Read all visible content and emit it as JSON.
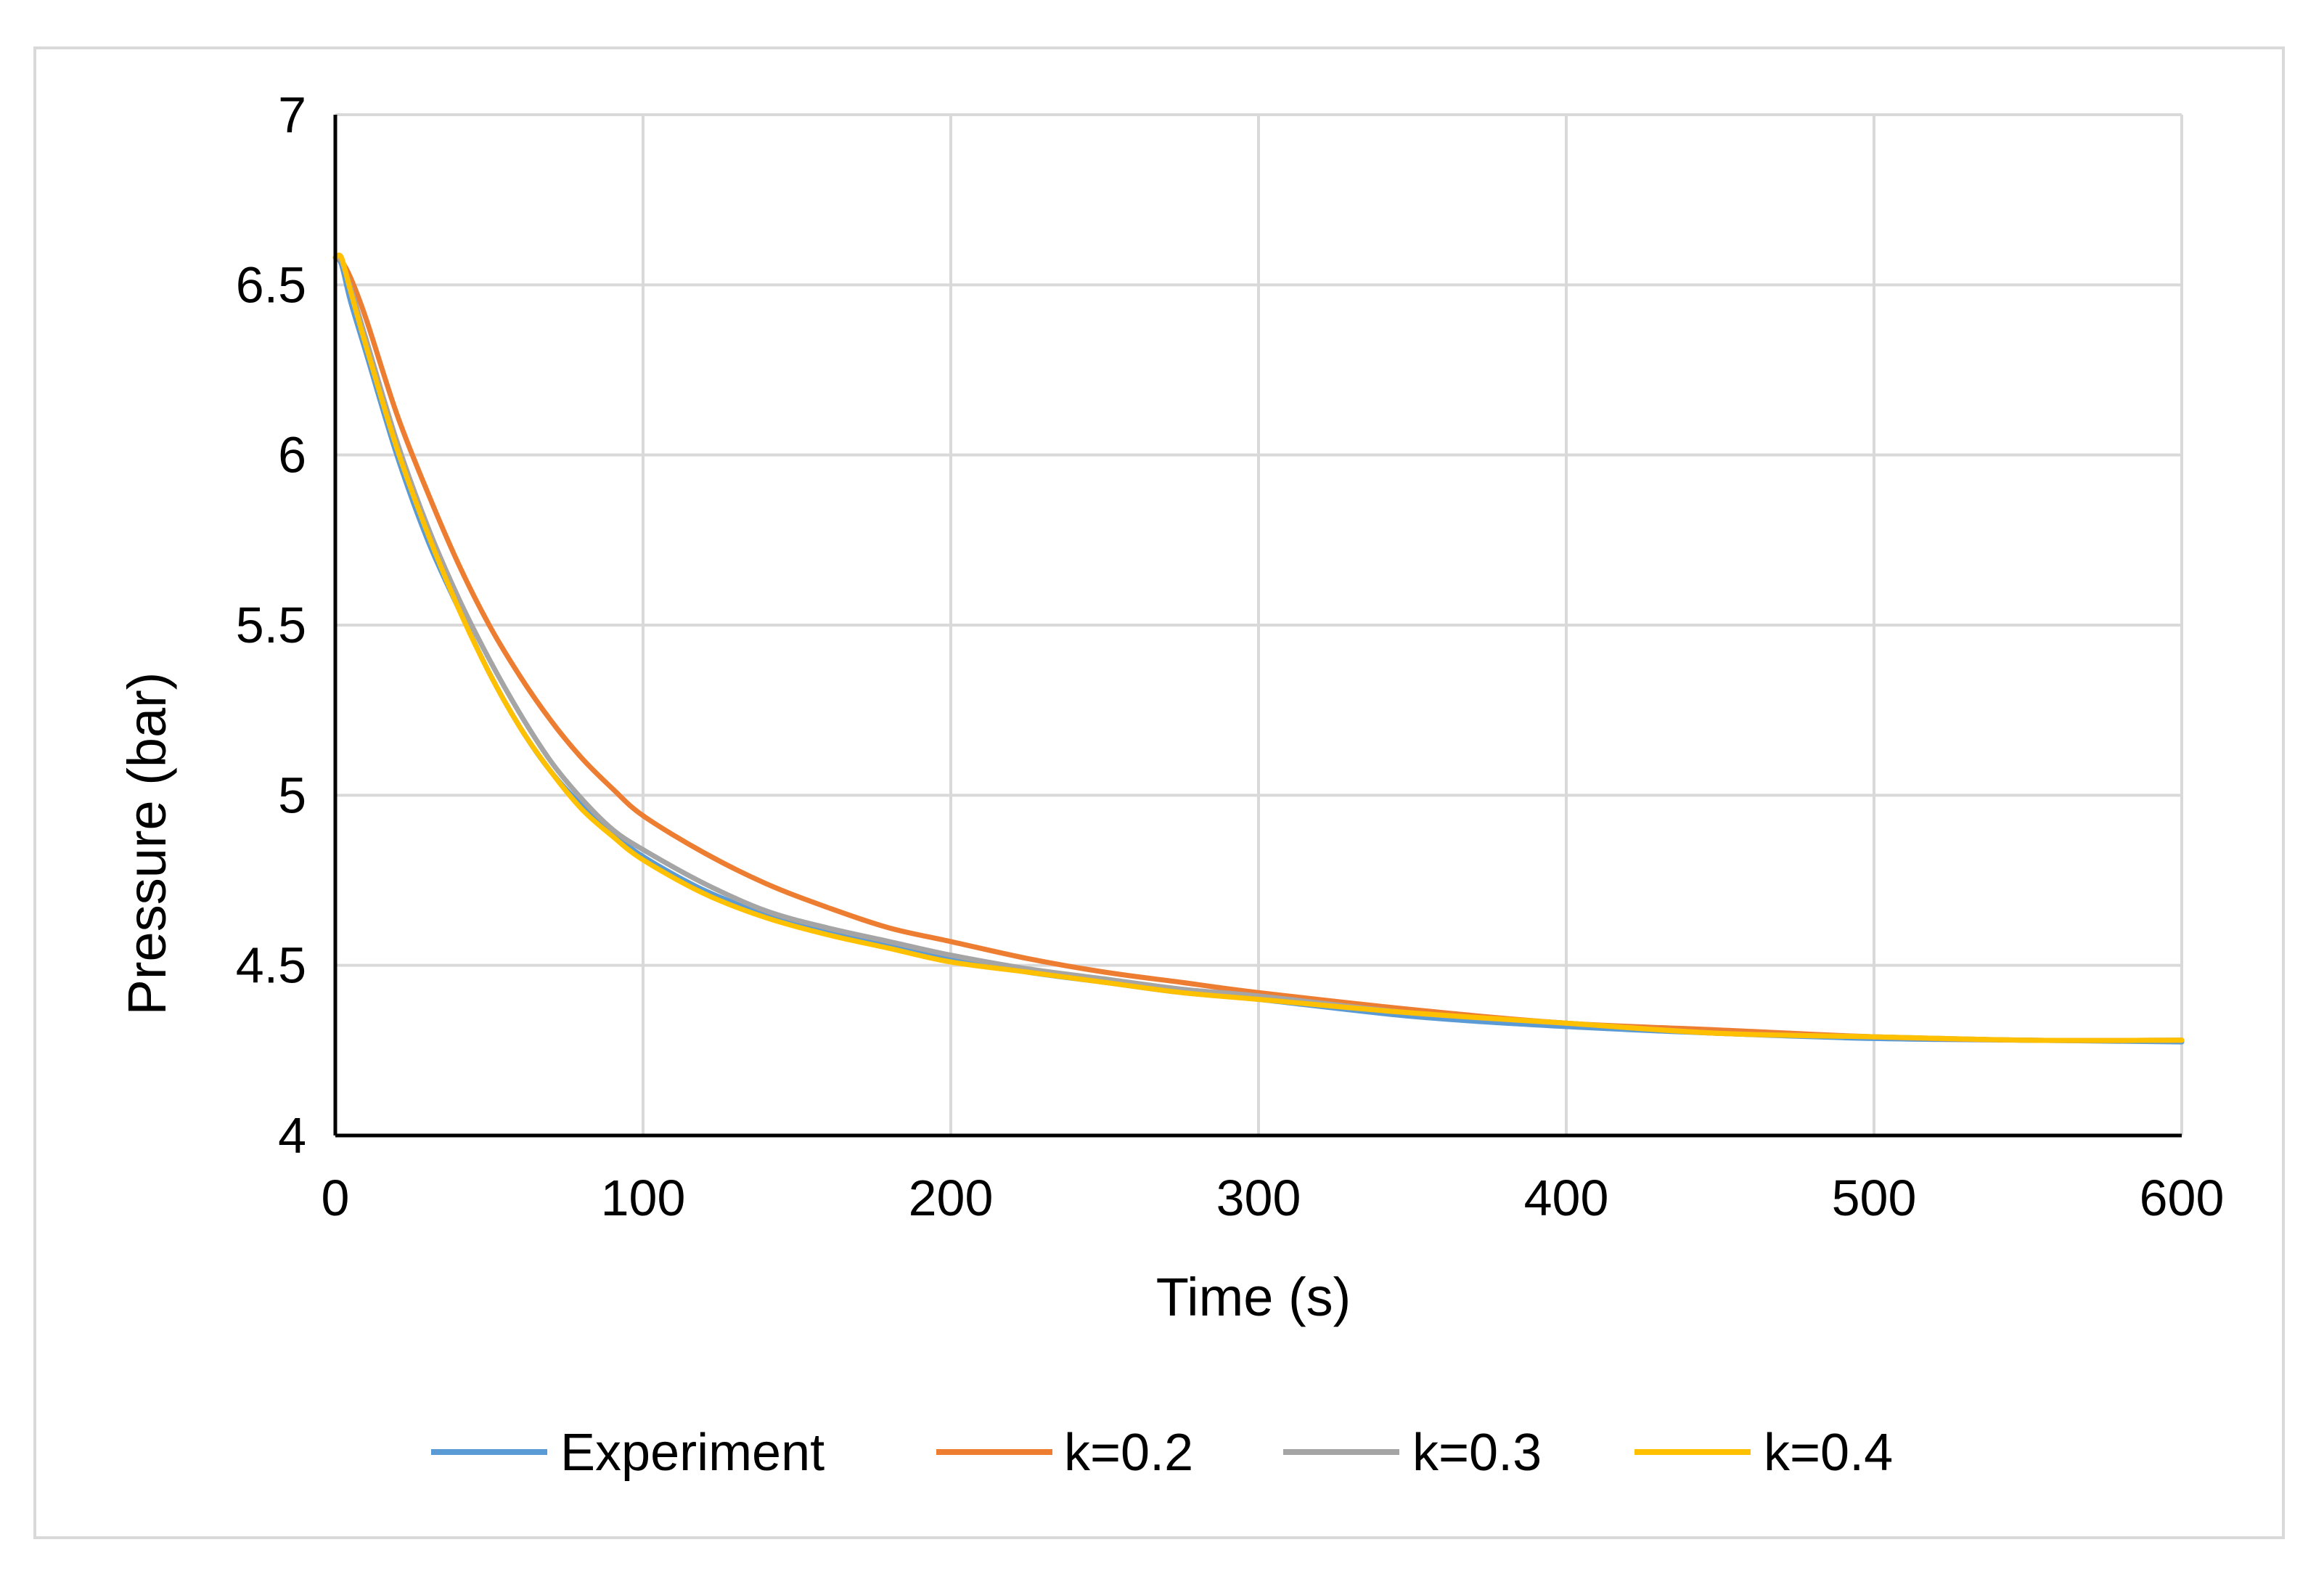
{
  "chart_data": {
    "type": "line",
    "title": "",
    "xlabel": "Time (s)",
    "ylabel": "Pressure (bar)",
    "xlim": [
      0,
      600
    ],
    "ylim": [
      4,
      7
    ],
    "xticks": [
      "0",
      "100",
      "200",
      "300",
      "400",
      "500",
      "600"
    ],
    "yticks": [
      "4",
      "4.5",
      "5",
      "5.5",
      "6",
      "6.5",
      "7"
    ],
    "grid": true,
    "legend_position": "bottom",
    "x": [
      0,
      2,
      5,
      10,
      20,
      30,
      40,
      50,
      60,
      70,
      80,
      90,
      100,
      120,
      140,
      160,
      180,
      200,
      225,
      250,
      275,
      300,
      350,
      400,
      450,
      500,
      550,
      600
    ],
    "series": [
      {
        "name": "Experiment",
        "color": "#5B9BD5",
        "values": [
          6.58,
          6.56,
          6.45,
          6.3,
          6.0,
          5.75,
          5.55,
          5.36,
          5.2,
          5.07,
          4.97,
          4.89,
          4.82,
          4.72,
          4.65,
          4.6,
          4.56,
          4.52,
          4.48,
          4.45,
          4.42,
          4.4,
          4.35,
          4.32,
          4.3,
          4.285,
          4.28,
          4.275
        ]
      },
      {
        "name": "k=0.2",
        "color": "#ED7D31",
        "values": [
          6.58,
          6.57,
          6.52,
          6.4,
          6.12,
          5.89,
          5.68,
          5.5,
          5.35,
          5.22,
          5.11,
          5.02,
          4.94,
          4.83,
          4.74,
          4.67,
          4.61,
          4.57,
          4.52,
          4.48,
          4.45,
          4.42,
          4.37,
          4.33,
          4.31,
          4.29,
          4.28,
          4.28
        ]
      },
      {
        "name": "k=0.3",
        "color": "#A5A5A5",
        "values": [
          6.58,
          6.57,
          6.49,
          6.34,
          6.04,
          5.79,
          5.58,
          5.4,
          5.24,
          5.1,
          4.99,
          4.9,
          4.84,
          4.74,
          4.66,
          4.61,
          4.57,
          4.53,
          4.49,
          4.46,
          4.43,
          4.41,
          4.36,
          4.33,
          4.3,
          4.29,
          4.28,
          4.28
        ]
      },
      {
        "name": "k=0.4",
        "color": "#FFC000",
        "values": [
          6.58,
          6.58,
          6.48,
          6.32,
          6.02,
          5.77,
          5.55,
          5.36,
          5.2,
          5.07,
          4.96,
          4.88,
          4.81,
          4.71,
          4.64,
          4.59,
          4.55,
          4.51,
          4.48,
          4.45,
          4.42,
          4.4,
          4.36,
          4.33,
          4.3,
          4.29,
          4.28,
          4.28
        ]
      }
    ]
  }
}
